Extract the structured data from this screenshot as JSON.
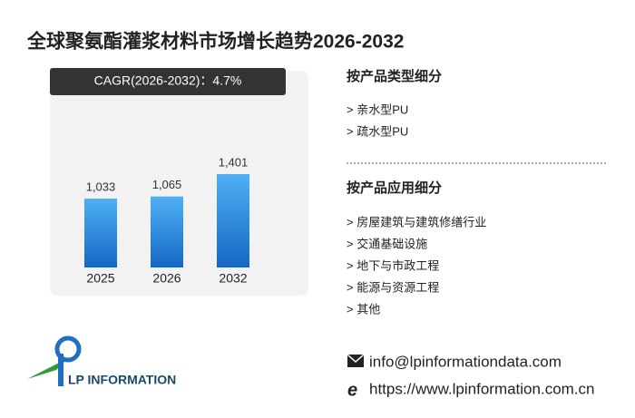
{
  "title": "全球聚氨酯灌浆材料市场增长趋势2026-2032",
  "chart_data": {
    "type": "bar",
    "annotation": "CAGR(2026-2032)：4.7%",
    "categories": [
      "2025",
      "2026",
      "2032"
    ],
    "values": [
      1033,
      1065,
      1401
    ],
    "value_labels": [
      "1,033",
      "1,065",
      "1,401"
    ],
    "color": "#2b8be0"
  },
  "sections": [
    {
      "heading": "按产品类型细分",
      "items": [
        "> 亲水型PU",
        "> 疏水型PU"
      ]
    },
    {
      "heading": "按产品应用细分",
      "items": [
        "> 房屋建筑与建筑修缮行业",
        "> 交通基础设施",
        "> 地下与市政工程",
        "> 能源与资源工程",
        "> 其他"
      ]
    }
  ],
  "contact": {
    "email": "info@lpinformationdata.com",
    "website": "https://www.lpinformation.com.cn"
  },
  "logo": "LP INFORMATION"
}
